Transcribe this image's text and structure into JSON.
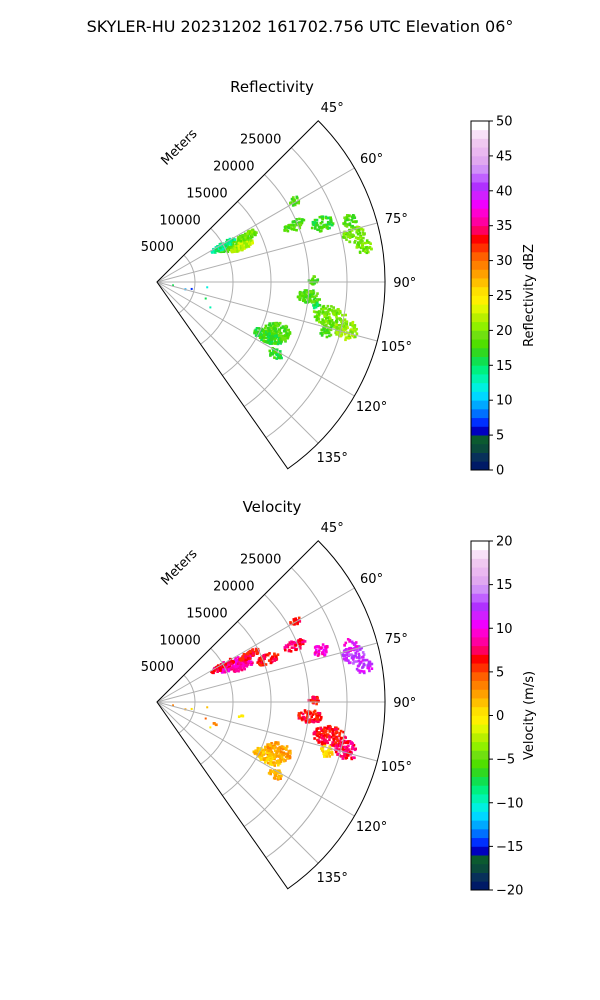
{
  "figure": {
    "suptitle": "SKYLER-HU  20231202  161702.756 UTC Elevation 06°"
  },
  "range_axis_label": "Meters",
  "chart_data": [
    {
      "type": "heatmap",
      "title": "Reflectivity",
      "r_ticks": [
        5000,
        10000,
        15000,
        20000,
        25000
      ],
      "r_max": 30000,
      "theta_range_deg": [
        45,
        145
      ],
      "theta_ticks_deg": [
        45,
        60,
        75,
        90,
        105,
        120,
        135
      ],
      "colorbar": {
        "label": "Reflectivity dBZ",
        "vmin": 0,
        "vmax": 50,
        "ticks": [
          0,
          5,
          10,
          15,
          20,
          25,
          30,
          35,
          40,
          45,
          50
        ],
        "colors": [
          "#001a66",
          "#08305a",
          "#0a4a3c",
          "#0b5a30",
          "#0000c0",
          "#0030ff",
          "#0070ff",
          "#00a8ff",
          "#00d8ff",
          "#00f0e0",
          "#00f4b0",
          "#00f080",
          "#10e050",
          "#30d820",
          "#50e000",
          "#70e010",
          "#90f000",
          "#b8f000",
          "#e0f800",
          "#fff000",
          "#ffe000",
          "#ffc000",
          "#ffa000",
          "#ff8000",
          "#ff6000",
          "#ff3000",
          "#ff0000",
          "#ff0060",
          "#ff00a0",
          "#ff00d0",
          "#f000ff",
          "#d020ff",
          "#b030ff",
          "#c060ff",
          "#d090f8",
          "#e0a8f0",
          "#eab8f0",
          "#f0c8f0",
          "#f8e0f8",
          "#ffffff"
        ]
      }
    },
    {
      "type": "heatmap",
      "title": "Velocity",
      "r_ticks": [
        5000,
        10000,
        15000,
        20000,
        25000
      ],
      "r_max": 30000,
      "theta_range_deg": [
        45,
        145
      ],
      "theta_ticks_deg": [
        45,
        60,
        75,
        90,
        105,
        120,
        135
      ],
      "colorbar": {
        "label": "Velocity (m/s)",
        "vmin": -20,
        "vmax": 20,
        "ticks": [
          -20,
          -15,
          -10,
          -5,
          0,
          5,
          10,
          15,
          20
        ],
        "colors": [
          "#001a66",
          "#08305a",
          "#0a4a3c",
          "#0b5a30",
          "#0000c0",
          "#0030ff",
          "#0070ff",
          "#00a8ff",
          "#00d8ff",
          "#00f0e0",
          "#00f4b0",
          "#00f080",
          "#10e050",
          "#30d820",
          "#50e000",
          "#70e010",
          "#90f000",
          "#b8f000",
          "#e0f800",
          "#fff000",
          "#ffe000",
          "#ffc000",
          "#ffa000",
          "#ff8000",
          "#ff6000",
          "#ff3000",
          "#ff0000",
          "#ff0060",
          "#ff00a0",
          "#ff00d0",
          "#f000ff",
          "#d020ff",
          "#b030ff",
          "#c060ff",
          "#d090f8",
          "#e0a8f0",
          "#eab8f0",
          "#f0c8f0",
          "#f8e0f8",
          "#ffffff"
        ]
      }
    }
  ]
}
